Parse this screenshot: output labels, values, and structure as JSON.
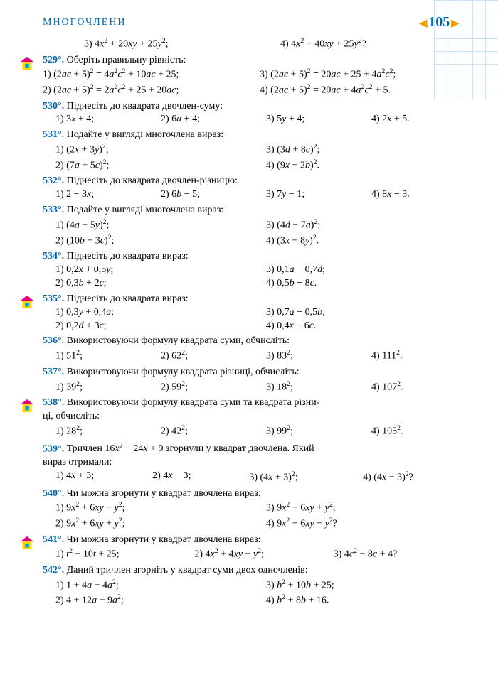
{
  "header": {
    "title": "МНОГОЧЛЕНИ",
    "page": "105"
  },
  "colors": {
    "accent": "#0066b3",
    "marker_roof": "#e6007e",
    "marker_wall": "#ffd500",
    "marker_win": "#00a0e0",
    "grid": "#a8d0e8"
  },
  "pre": {
    "i3": "3) 4<span class='it'>x</span><sup>2</sup> + 20<span class='it'>xy</span> + 25<span class='it'>y</span><sup>2</sup>;",
    "i4": "4) 4<span class='it'>x</span><sup>2</sup> + 40<span class='it'>xy</span> + 25<span class='it'>y</span><sup>2</sup>?"
  },
  "p529": {
    "num": "529°.",
    "text": "Оберіть правильну рівність:",
    "i1": "1) (2<span class='it'>ac</span> + 5)<sup>2</sup> = 4<span class='it'>a</span><sup>2</sup><span class='it'>c</span><sup>2</sup> + 10<span class='it'>ac</span> + 25;",
    "i3": "3) (2<span class='it'>ac</span> + 5)<sup>2</sup> = 20<span class='it'>ac</span> + 25 + 4<span class='it'>a</span><sup>2</sup><span class='it'>c</span><sup>2</sup>;",
    "i2": "2) (2<span class='it'>ac</span> + 5)<sup>2</sup> = 2<span class='it'>a</span><sup>2</sup><span class='it'>c</span><sup>2</sup> + 25 + 20<span class='it'>ac</span>;",
    "i4": "4) (2<span class='it'>ac</span> + 5)<sup>2</sup> = 20<span class='it'>ac</span> + 4<span class='it'>a</span><sup>2</sup><span class='it'>c</span><sup>2</sup> + 5."
  },
  "p530": {
    "num": "530°.",
    "text": "Піднесіть до квадрата двочлен-суму:",
    "i1": "1) 3<span class='it'>x</span> + 4;",
    "i2": "2) 6<span class='it'>a</span> + 4;",
    "i3": "3) 5<span class='it'>y</span> + 4;",
    "i4": "4) 2<span class='it'>x</span> + 5."
  },
  "p531": {
    "num": "531°.",
    "text": "Подайте у вигляді многочлена вираз:",
    "i1": "1) (2<span class='it'>x</span> + 3<span class='it'>y</span>)<sup>2</sup>;",
    "i3": "3) (3<span class='it'>d</span> + 8<span class='it'>c</span>)<sup>2</sup>;",
    "i2": "2) (7<span class='it'>a</span> + 5<span class='it'>c</span>)<sup>2</sup>;",
    "i4": "4) (9<span class='it'>x</span> + 2<span class='it'>b</span>)<sup>2</sup>."
  },
  "p532": {
    "num": "532°.",
    "text": "Піднесіть до квадрата двочлен-різницю:",
    "i1": "1) 2 − 3<span class='it'>x</span>;",
    "i2": "2) 6<span class='it'>b</span> − 5;",
    "i3": "3) 7<span class='it'>y</span> − 1;",
    "i4": "4) 8<span class='it'>x</span> − 3."
  },
  "p533": {
    "num": "533°.",
    "text": "Подайте у вигляді многочлена вираз:",
    "i1": "1) (4<span class='it'>a</span> − 5<span class='it'>y</span>)<sup>2</sup>;",
    "i3": "3) (4<span class='it'>d</span> − 7<span class='it'>a</span>)<sup>2</sup>;",
    "i2": "2) (10<span class='it'>b</span> − 3<span class='it'>c</span>)<sup>2</sup>;",
    "i4": "4) (3<span class='it'>x</span> − 8<span class='it'>y</span>)<sup>2</sup>."
  },
  "p534": {
    "num": "534°.",
    "text": "Піднесіть до квадрата вираз:",
    "i1": "1) 0,2<span class='it'>x</span> + 0,5<span class='it'>y</span>;",
    "i3": "3) 0,1<span class='it'>a</span> − 0,7<span class='it'>d</span>;",
    "i2": "2) 0,3<span class='it'>b</span> + 2<span class='it'>c</span>;",
    "i4": "4) 0,5<span class='it'>b</span> − 8<span class='it'>c</span>."
  },
  "p535": {
    "num": "535°.",
    "text": "Піднесіть до квадрата вираз:",
    "i1": "1) 0,3<span class='it'>y</span> + 0,4<span class='it'>a</span>;",
    "i3": "3) 0,7<span class='it'>a</span> − 0,5<span class='it'>b</span>;",
    "i2": "2) 0,2<span class='it'>d</span> + 3<span class='it'>c</span>;",
    "i4": "4) 0,4<span class='it'>x</span> − 6<span class='it'>c</span>."
  },
  "p536": {
    "num": "536°.",
    "text": "Використовуючи формулу квадрата суми, обчисліть:",
    "i1": "1) 51<sup>2</sup>;",
    "i2": "2) 62<sup>2</sup>;",
    "i3": "3) 83<sup>2</sup>;",
    "i4": "4) 111<sup>2</sup>."
  },
  "p537": {
    "num": "537°.",
    "text": "Використовуючи формулу квадрата різниці, обчисліть:",
    "i1": "1) 39<sup>2</sup>;",
    "i2": "2) 59<sup>2</sup>;",
    "i3": "3) 18<sup>2</sup>;",
    "i4": "4) 107<sup>2</sup>."
  },
  "p538": {
    "num": "538°.",
    "text": "Використовуючи формулу квадрата суми та квадрата різни-",
    "text2": "ці, обчисліть:",
    "i1": "1) 28<sup>2</sup>;",
    "i2": "2) 42<sup>2</sup>;",
    "i3": "3) 99<sup>2</sup>;",
    "i4": "4) 105<sup>2</sup>."
  },
  "p539": {
    "num": "539°.",
    "text": "Тричлен 16<span class='it'>x</span><sup>2</sup> − 24<span class='it'>x</span> + 9 згорнули у квадрат двочлена. Який",
    "text2": "вираз отримали:",
    "i1": "1) 4<span class='it'>x</span> + 3;",
    "i2": "2) 4<span class='it'>x</span> − 3;",
    "i3": "3) (4<span class='it'>x</span> + 3)<sup>2</sup>;",
    "i4": "4) (4<span class='it'>x</span> − 3)<sup>2</sup>?"
  },
  "p540": {
    "num": "540°.",
    "text": "Чи можна згорнути у квадрат двочлена вираз:",
    "i1": "1) 9<span class='it'>x</span><sup>2</sup> + 6<span class='it'>xy</span> − <span class='it'>y</span><sup>2</sup>;",
    "i3": "3) 9<span class='it'>x</span><sup>2</sup> − 6<span class='it'>xy</span> + <span class='it'>y</span><sup>2</sup>;",
    "i2": "2) 9<span class='it'>x</span><sup>2</sup> + 6<span class='it'>xy</span> + <span class='it'>y</span><sup>2</sup>;",
    "i4": "4) 9<span class='it'>x</span><sup>2</sup> − 6<span class='it'>xy</span> − <span class='it'>y</span><sup>2</sup>?"
  },
  "p541": {
    "num": "541°.",
    "text": "Чи можна згорнути у квадрат двочлена вираз:",
    "i1": "1) <span class='it'>t</span><sup>2</sup> + 10<span class='it'>t</span> + 25;",
    "i2": "2) 4<span class='it'>x</span><sup>2</sup> + 4<span class='it'>xy</span> + <span class='it'>y</span><sup>2</sup>;",
    "i3": "3) 4<span class='it'>c</span><sup>2</sup> − 8<span class='it'>c</span> + 4?"
  },
  "p542": {
    "num": "542°.",
    "text": "Даний тричлен згорніть у квадрат суми двох одночленів:",
    "i1": "1) 1 + 4<span class='it'>a</span> + 4<span class='it'>a</span><sup>2</sup>;",
    "i3": "3) <span class='it'>b</span><sup>2</sup> + 10<span class='it'>b</span> + 25;",
    "i2": "2) 4 + 12<span class='it'>a</span> + 9<span class='it'>a</span><sup>2</sup>;",
    "i4": "4) <span class='it'>b</span><sup>2</sup> + 8<span class='it'>b</span> + 16."
  }
}
